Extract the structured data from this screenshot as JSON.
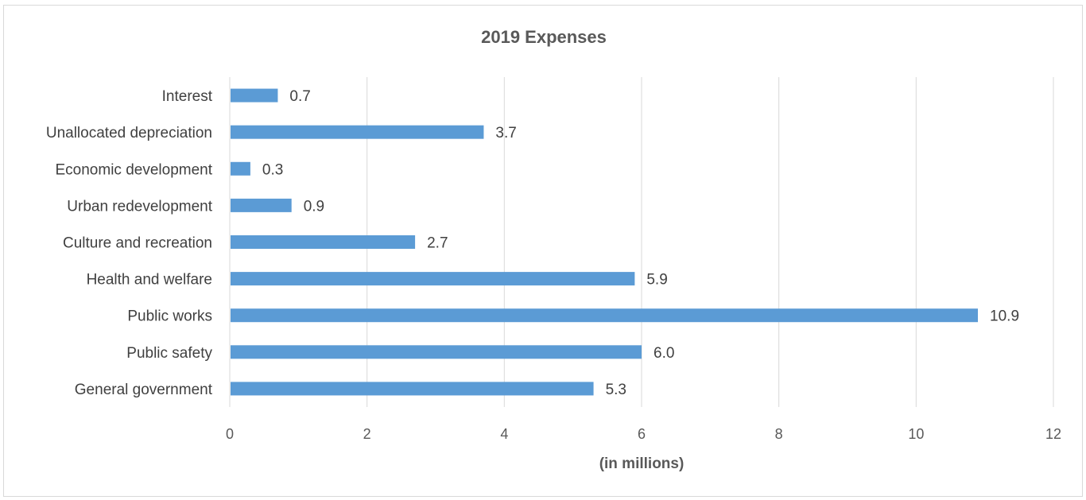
{
  "chart_data": {
    "type": "bar",
    "orientation": "horizontal",
    "title": "2019 Expenses",
    "xlabel": "(in millions)",
    "ylabel": "",
    "categories": [
      "Interest",
      "Unallocated depreciation",
      "Economic development",
      "Urban redevelopment",
      "Culture and recreation",
      "Health and welfare",
      "Public works",
      "Public safety",
      "General government"
    ],
    "values": [
      0.7,
      3.7,
      0.3,
      0.9,
      2.7,
      5.9,
      10.9,
      6.0,
      5.3
    ],
    "value_labels": [
      "0.7",
      "3.7",
      "0.3",
      "0.9",
      "2.7",
      "5.9",
      "10.9",
      "6.0",
      "5.3"
    ],
    "xlim": [
      0,
      12
    ],
    "xticks": [
      0,
      2,
      4,
      6,
      8,
      10,
      12
    ],
    "grid": true,
    "legend": "none",
    "bar_color": "#5b9bd5"
  }
}
